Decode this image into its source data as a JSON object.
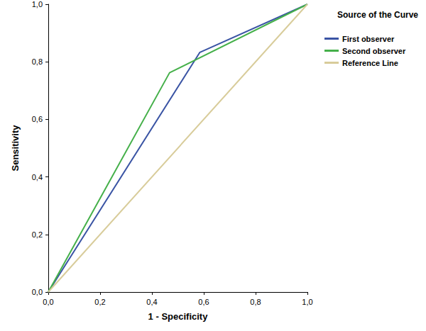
{
  "chart_data": {
    "type": "line",
    "x_label": "1 - Specificity",
    "y_label": "Sensitivity",
    "legend_title": "Source of the Curve",
    "legend": "right",
    "grid": false,
    "xlim": [
      0,
      1
    ],
    "ylim": [
      0,
      1
    ],
    "xticks": [
      {
        "value": 0,
        "label": "0,0"
      },
      {
        "value": 0.2,
        "label": "0,2"
      },
      {
        "value": 0.4,
        "label": "0,4"
      },
      {
        "value": 0.6,
        "label": "0,6"
      },
      {
        "value": 0.8,
        "label": "0,8"
      },
      {
        "value": 1,
        "label": "1,0"
      }
    ],
    "yticks": [
      {
        "value": 0,
        "label": "0,0"
      },
      {
        "value": 0.2,
        "label": "0,2"
      },
      {
        "value": 0.4,
        "label": "0,4"
      },
      {
        "value": 0.6,
        "label": "0,6"
      },
      {
        "value": 0.8,
        "label": "0,8"
      },
      {
        "value": 1,
        "label": "1,0"
      }
    ],
    "series": [
      {
        "name": "First observer",
        "color": "#3a54a4",
        "x": [
          0,
          0.585,
          1
        ],
        "values": [
          0,
          0.833,
          1
        ]
      },
      {
        "name": "Second observer",
        "color": "#45b04a",
        "x": [
          0,
          0.468,
          1
        ],
        "values": [
          0,
          0.762,
          1
        ]
      },
      {
        "name": "Reference Line",
        "color": "#d8cc9a",
        "x": [
          0,
          1
        ],
        "values": [
          0,
          1
        ]
      }
    ]
  }
}
